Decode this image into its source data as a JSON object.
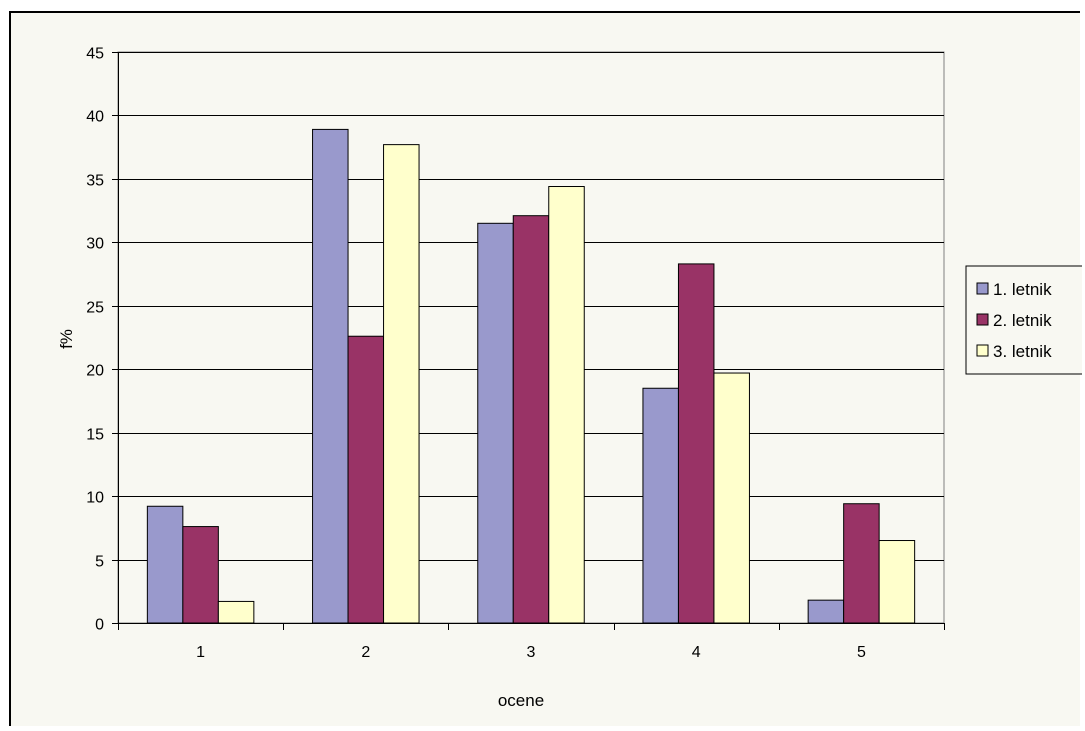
{
  "chart_data": {
    "type": "bar",
    "categories": [
      "1",
      "2",
      "3",
      "4",
      "5"
    ],
    "series": [
      {
        "name": "1. letnik",
        "values": [
          9.2,
          38.9,
          31.5,
          18.5,
          1.8
        ]
      },
      {
        "name": "2. letnik",
        "values": [
          7.6,
          22.6,
          32.1,
          28.3,
          9.4
        ]
      },
      {
        "name": "3. letnik",
        "values": [
          1.7,
          37.7,
          34.4,
          19.7,
          6.5
        ]
      }
    ],
    "xlabel": "ocene",
    "ylabel": "f%",
    "ylim": [
      0,
      45
    ],
    "yticks": [
      "0",
      "5",
      "10",
      "15",
      "20",
      "25",
      "30",
      "35",
      "40",
      "45"
    ],
    "grid": true,
    "legend_position": "right"
  },
  "colors": {
    "series": [
      "#9999cc",
      "#993366",
      "#ffffcc"
    ],
    "plot_background": "#f8f8f2",
    "gridline": "#000000"
  }
}
